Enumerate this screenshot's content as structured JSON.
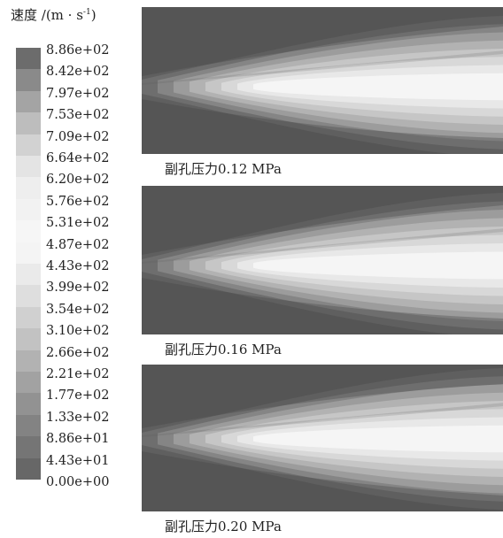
{
  "legend": {
    "title_main": "速度 /(m · s",
    "title_sup": "-1",
    "title_end": ")",
    "ticks": [
      "8.86e+02",
      "8.42e+02",
      "7.97e+02",
      "7.53e+02",
      "7.09e+02",
      "6.64e+02",
      "6.20e+02",
      "5.76e+02",
      "5.31e+02",
      "4.87e+02",
      "4.43e+02",
      "3.99e+02",
      "3.54e+02",
      "3.10e+02",
      "2.66e+02",
      "2.21e+02",
      "1.77e+02",
      "1.33e+02",
      "8.86e+01",
      "4.43e+01",
      "0.00e+00"
    ],
    "colors": [
      "#6c6c6c",
      "#8a8a8a",
      "#a4a4a4",
      "#bdbdbd",
      "#d2d2d2",
      "#e4e4e4",
      "#eeeeee",
      "#f2f2f2",
      "#f6f6f6",
      "#f4f4f4",
      "#eaeaea",
      "#dedede",
      "#d0d0d0",
      "#c2c2c2",
      "#b2b2b2",
      "#a2a2a2",
      "#929292",
      "#838383",
      "#757575",
      "#676767"
    ]
  },
  "panels": [
    {
      "caption": "副孔压力0.12 MPa"
    },
    {
      "caption": "副孔压力0.16 MPa"
    },
    {
      "caption": "副孔压力0.20 MPa"
    }
  ]
}
